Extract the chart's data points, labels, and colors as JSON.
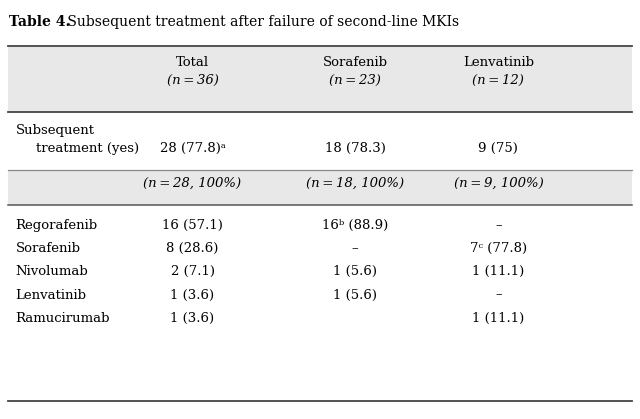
{
  "title_bold": "Table 4.",
  "title_rest": " Subsequent treatment after failure of second-line MKIs",
  "bg_color": "#e8e8e8",
  "white_color": "#ffffff",
  "subsequent_data": [
    "28 (77.8)ᵃ",
    "18 (78.3)",
    "9 (75)"
  ],
  "sub_header": [
    "(n = 28, 100%)",
    "(n = 18, 100%)",
    "(n = 9, 100%)"
  ],
  "rows": [
    [
      "Regorafenib",
      "16 (57.1)",
      "16ᵇ (88.9)",
      "–"
    ],
    [
      "Sorafenib",
      "8 (28.6)",
      "–",
      "7ᶜ (77.8)"
    ],
    [
      "Nivolumab",
      "2 (7.1)",
      "1 (5.6)",
      "1 (11.1)"
    ],
    [
      "Lenvatinib",
      "1 (3.6)",
      "1 (5.6)",
      "–"
    ],
    [
      "Ramucirumab",
      "1 (3.6)",
      "",
      "1 (11.1)"
    ]
  ],
  "font_size": 9.5,
  "title_font_size": 10
}
